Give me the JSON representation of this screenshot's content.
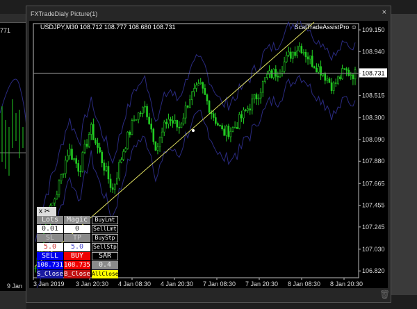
{
  "background": {
    "left_price": "771",
    "left_date": "9 Jan"
  },
  "window": {
    "title": "FXTradeDialy Picture(1)",
    "close_glyph": "×"
  },
  "chart": {
    "symbol_info": "USDJPY,M30  108.712 108.777 108.680 108.731",
    "indicator_name": "ScalTradeAssistPro",
    "smiley_icon": "☺",
    "current_price": "108.731"
  },
  "panel": {
    "close_x": "x",
    "scissors_icon": "✂",
    "lots_label": "Lots",
    "magic_label": "Magic",
    "lots_value": "0.01",
    "magic_value": "0",
    "sl_label": "SL",
    "tp_label": "TP",
    "sl_value": "5.0",
    "tp_value": "5.0",
    "sell_label": "SELL",
    "buy_label": "BUY",
    "sell_price": "108.731",
    "buy_price": "108.735",
    "s_close": "S_Close",
    "b_close": "B_Close",
    "buy_limit": "BuyLmt",
    "sell_limit": "SellLmt",
    "buy_stop": "BuyStp",
    "sell_stop": "SellStp",
    "sar_label": "SAR",
    "sar_value": "0.4",
    "all_close": "AllClose"
  },
  "trash_icon": "🗑",
  "chart_data": {
    "type": "candlestick",
    "symbol": "USDJPY",
    "timeframe": "M30",
    "y_ticks": [
      "109.150",
      "108.940",
      "108.731",
      "108.515",
      "108.300",
      "108.090",
      "107.880",
      "107.665",
      "107.455",
      "107.245",
      "107.030",
      "106.820"
    ],
    "x_ticks": [
      "3 Jan 2019",
      "3 Jan 20:30",
      "4 Jan 08:30",
      "4 Jan 20:30",
      "7 Jan 08:30",
      "7 Jan 20:30",
      "8 Jan 08:30",
      "8 Jan 20:30"
    ],
    "ylim": [
      106.8,
      109.22
    ],
    "approx_close_path": [
      106.85,
      107.3,
      107.6,
      108.0,
      107.8,
      108.2,
      107.9,
      107.6,
      108.0,
      108.3,
      108.4,
      108.0,
      108.3,
      108.2,
      108.5,
      108.6,
      108.35,
      108.15,
      108.2,
      108.35,
      108.5,
      108.7,
      108.75,
      108.9,
      109.0,
      108.85,
      108.75,
      108.6,
      108.75,
      108.72
    ],
    "colors": {
      "candle": "#22cc22",
      "bands": "#2a2a80",
      "trendline": "#e0e060",
      "hline": "#888888"
    }
  }
}
